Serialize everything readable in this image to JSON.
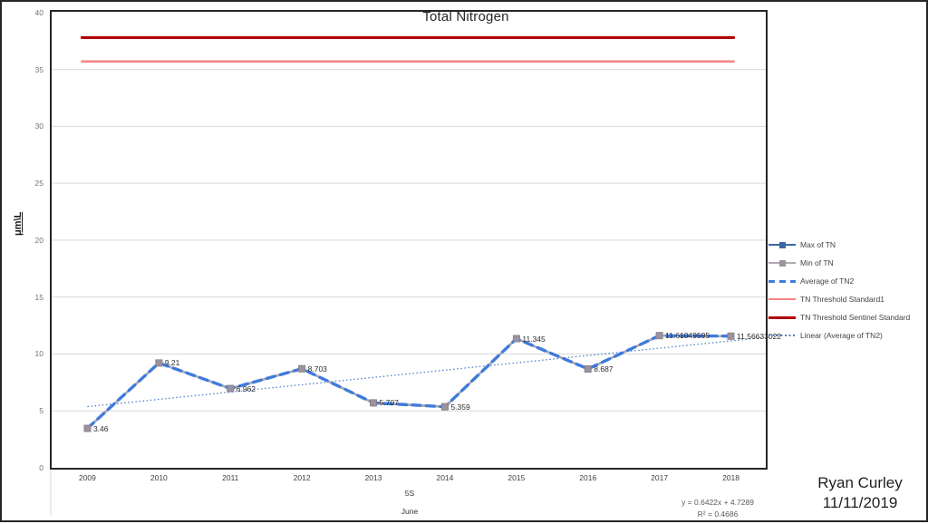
{
  "signature": {
    "name": "Ryan Curley",
    "date": "11/11/2019"
  },
  "chart_data": {
    "type": "line",
    "title": "Total Nitrogen",
    "ylabel": "μm\\L",
    "xlabel_field": "5S",
    "xlabel_period": "June",
    "categories": [
      "2009",
      "2010",
      "2011",
      "2012",
      "2013",
      "2014",
      "2015",
      "2016",
      "2017",
      "2018"
    ],
    "series": [
      {
        "name": "Max of TN",
        "style": "solid",
        "color": "#3B66A5",
        "marker": "square",
        "marker_color": "#3B66A5",
        "values": [
          3.46,
          9.21,
          6.962,
          8.703,
          5.707,
          5.359,
          11.345,
          8.687,
          11.61049595,
          11.56633022
        ]
      },
      {
        "name": "Min of TN",
        "style": "solid",
        "color": "#B0A9B0",
        "marker": "square",
        "marker_color": "#9C92A0",
        "values": [
          3.46,
          9.21,
          6.962,
          8.703,
          5.707,
          5.359,
          11.345,
          8.687,
          11.61049595,
          11.56633022
        ]
      },
      {
        "name": "Average of TN2",
        "style": "dashed",
        "color": "#3F7BDC",
        "values": [
          3.46,
          9.21,
          6.962,
          8.703,
          5.707,
          5.359,
          11.345,
          8.687,
          11.61049595,
          11.56633022
        ]
      }
    ],
    "data_labels": [
      "3.46",
      "9.21",
      "6.962",
      "8.703",
      "5.707",
      "5.359",
      "11.345",
      "8.687",
      "11.61049595",
      "11.56633022"
    ],
    "thresholds": [
      {
        "name": "TN Threshold Standard1",
        "value": 35.7,
        "color": "#F58585",
        "width": 2.6
      },
      {
        "name": "TN Threshold Sentinel Standard",
        "value": 37.8,
        "color": "#B20505",
        "width": 3.2
      }
    ],
    "trendline": {
      "name": "Linear (Average of TN2)",
      "slope": 0.6422,
      "intercept": 4.7289,
      "equation": "y = 0.6422x + 4.7289",
      "r_squared": "R² = 0.4686",
      "color": "#4F81C7"
    },
    "ylim": [
      0,
      40
    ],
    "ytick_step": 5,
    "grid": true,
    "legend": {
      "position": "right",
      "items": [
        {
          "label": "Max of TN",
          "key": "line-square",
          "color": "#3B66A5",
          "marker_color": "#3B66A5"
        },
        {
          "label": "Min of TN",
          "key": "line-square",
          "color": "#B0A9B0",
          "marker_color": "#9C92A0"
        },
        {
          "label": "Average of TN2",
          "key": "dashed",
          "color": "#3F7BDC"
        },
        {
          "label": "TN Threshold Standard1",
          "key": "solid",
          "color": "#F58585"
        },
        {
          "label": "TN Threshold Sentinel Standard",
          "key": "solid-thick",
          "color": "#B20505"
        },
        {
          "label": "Linear (Average of TN2)",
          "key": "dotted",
          "color": "#4F81C7"
        }
      ]
    }
  }
}
